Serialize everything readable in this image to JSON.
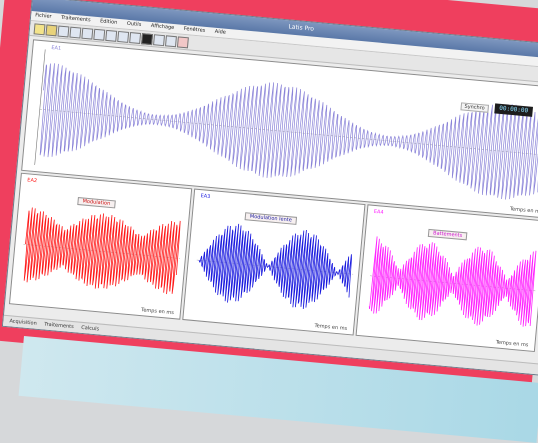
{
  "window": {
    "title": "Latis Pro",
    "menu": [
      "Fichier",
      "Traitements",
      "Edition",
      "Outils",
      "Affichage",
      "Fenêtres",
      "Aide"
    ],
    "readout": "00:00:00",
    "readout_label": "Synchro",
    "status": [
      "Acquisition",
      "Traitements",
      "Calculs"
    ]
  },
  "panels": {
    "main": {
      "label": "EA1",
      "color": "#8a83d8",
      "xaxis": "Temps en ms"
    },
    "left": {
      "label": "EA2",
      "color": "#ff1a1a",
      "badge": "Modulation",
      "xaxis": "Temps en ms"
    },
    "mid": {
      "label": "EA3",
      "color": "#1a1adf",
      "badge": "Modulation lente",
      "xaxis": "Temps en ms"
    },
    "right": {
      "label": "EA4",
      "color": "#ff22ff",
      "badge": "Battements",
      "xaxis": "Temps en ms"
    }
  },
  "colors": {
    "frame": "#ef3f5e"
  }
}
